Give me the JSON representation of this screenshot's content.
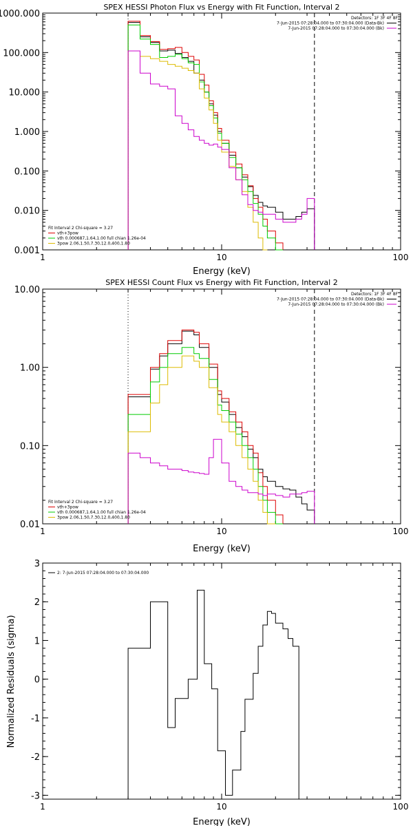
{
  "chart_data": [
    {
      "id": "photon",
      "type": "line",
      "step": true,
      "title": "SPEX HESSI Photon Flux vs Energy with Fit Function, Interval 2",
      "xlabel": "Energy (keV)",
      "ylabel": "",
      "xscale": "log",
      "yscale": "log",
      "xlim": [
        1,
        100
      ],
      "ylim": [
        0.001,
        1000
      ],
      "xticks": [
        {
          "v": 1,
          "label": "1"
        },
        {
          "v": 10,
          "label": "10"
        },
        {
          "v": 100,
          "label": "100"
        }
      ],
      "yticks": [
        {
          "v": 0.001,
          "label": "0.001"
        },
        {
          "v": 0.01,
          "label": "0.010"
        },
        {
          "v": 0.1,
          "label": "0.100"
        },
        {
          "v": 1,
          "label": "1.000"
        },
        {
          "v": 10,
          "label": "10.000"
        },
        {
          "v": 100,
          "label": "100.000"
        },
        {
          "v": 1000,
          "label": "1000.000"
        }
      ],
      "vlines": [
        {
          "x": 3.0,
          "style": "dotted"
        },
        {
          "x": 33.0,
          "style": "dashed"
        }
      ],
      "legend_top_right": [
        {
          "text": "Detectors: 1F 3F 4F 8F",
          "color": ""
        },
        {
          "text": "7-Jun-2015 07:28:04.000 to 07:30:04.000 (Data-Bk)",
          "color": "#000000"
        },
        {
          "text": "7-Jun-2015 07:28:04.000 to 07:30:04.000 (Bk)",
          "color": "#cc00cc"
        }
      ],
      "legend_bottom_left": [
        {
          "text": "Fit Interval 2   Chi-square = 3.27",
          "color": ""
        },
        {
          "text": "vth+3pow",
          "color": "#dd0000"
        },
        {
          "text": "vth 0.000687,1.64,1.00   full chian 1.26e-04",
          "color": "#00cc00"
        },
        {
          "text": "3pow 2.06,1.50,7.30,12.0,400,1.80",
          "color": "#ddbb00"
        }
      ],
      "edges": [
        3.0,
        3.5,
        4.0,
        4.5,
        5.0,
        5.5,
        6.0,
        6.5,
        7.0,
        7.5,
        8.0,
        8.5,
        9.0,
        9.5,
        10.0,
        11.0,
        12.0,
        13.0,
        14.0,
        15.0,
        16.0,
        17.0,
        18.0,
        20.0,
        22.0,
        24.0,
        26.0,
        28.0,
        30.0,
        33.0
      ],
      "series": [
        {
          "color": "#000000",
          "values": [
            580,
            250,
            180,
            110,
            115,
            95,
            75,
            60,
            30,
            20,
            10,
            5,
            2.6,
            1.0,
            0.5,
            0.25,
            0.12,
            0.07,
            0.04,
            0.024,
            0.016,
            0.013,
            0.012,
            0.009,
            0.006,
            0.006,
            0.007,
            0.009,
            0.011
          ]
        },
        {
          "color": "#dd0000",
          "values": [
            620,
            270,
            190,
            120,
            125,
            135,
            100,
            80,
            65,
            28,
            15,
            6,
            3.0,
            1.2,
            0.6,
            0.3,
            0.15,
            0.08,
            0.042,
            0.02,
            0.012,
            0.006,
            0.003,
            0.0015,
            null,
            null,
            null,
            null,
            null
          ]
        },
        {
          "color": "#00cc00",
          "values": [
            500,
            220,
            160,
            75,
            80,
            90,
            70,
            55,
            50,
            18,
            10,
            4.5,
            2.2,
            0.9,
            0.5,
            0.22,
            0.12,
            0.06,
            0.03,
            0.015,
            0.008,
            0.004,
            0.002,
            0.001,
            null,
            null,
            null,
            null,
            null
          ]
        },
        {
          "color": "#ddbb00",
          "values": [
            110,
            80,
            70,
            60,
            50,
            45,
            40,
            35,
            30,
            12,
            7,
            3.5,
            1.6,
            0.6,
            0.3,
            0.13,
            0.06,
            0.03,
            0.012,
            0.005,
            0.002,
            0.001,
            null,
            null,
            null,
            null,
            null,
            null,
            null
          ]
        },
        {
          "color": "#cc00cc",
          "values": [
            110,
            30,
            16,
            14,
            12,
            2.5,
            1.6,
            1.1,
            0.75,
            0.6,
            0.5,
            0.45,
            0.48,
            0.4,
            0.35,
            0.12,
            0.06,
            0.025,
            0.014,
            0.01,
            0.009,
            0.008,
            0.008,
            0.006,
            0.005,
            0.005,
            0.006,
            0.008,
            0.02
          ]
        }
      ]
    },
    {
      "id": "count",
      "type": "line",
      "step": true,
      "title": "SPEX HESSI Count Flux vs Energy with Fit Function, Interval 2",
      "xlabel": "Energy (keV)",
      "ylabel": "",
      "xscale": "log",
      "yscale": "log",
      "xlim": [
        1,
        100
      ],
      "ylim": [
        0.01,
        10
      ],
      "xticks": [
        {
          "v": 1,
          "label": "1"
        },
        {
          "v": 10,
          "label": "10"
        },
        {
          "v": 100,
          "label": "100"
        }
      ],
      "yticks": [
        {
          "v": 0.01,
          "label": "0.01"
        },
        {
          "v": 0.1,
          "label": "0.10"
        },
        {
          "v": 1,
          "label": "1.00"
        },
        {
          "v": 10,
          "label": "10.00"
        }
      ],
      "vlines": [
        {
          "x": 3.0,
          "style": "dotted"
        },
        {
          "x": 33.0,
          "style": "dashed"
        }
      ],
      "legend_top_right": [
        {
          "text": "Detectors: 1F 3F 4F 8F",
          "color": ""
        },
        {
          "text": "7-Jun-2015 07:28:04.000 to 07:30:04.000 (Data-Bk)",
          "color": "#000000"
        },
        {
          "text": "7-Jun-2015 07:28:04.000 to 07:30:04.000 (Bk)",
          "color": "#cc00cc"
        }
      ],
      "legend_bottom_left": [
        {
          "text": "Fit Interval 2   Chi-square = 3.27",
          "color": ""
        },
        {
          "text": "vth+3pow",
          "color": "#dd0000"
        },
        {
          "text": "vth 0.000687,1.64,1.00   full chian 1.26e-04",
          "color": "#00cc00"
        },
        {
          "text": "3pow 2.06,1.50,7.30,12.0,400,1.80",
          "color": "#ddbb00"
        }
      ],
      "edges": [
        3.0,
        3.5,
        4.0,
        4.5,
        5.0,
        5.5,
        6.0,
        6.5,
        7.0,
        7.5,
        8.0,
        8.5,
        9.0,
        9.5,
        10.0,
        11.0,
        12.0,
        13.0,
        14.0,
        15.0,
        16.0,
        17.0,
        18.0,
        20.0,
        22.0,
        24.0,
        26.0,
        28.0,
        30.0,
        33.0
      ],
      "series": [
        {
          "color": "#000000",
          "values": [
            0.42,
            0.42,
            0.95,
            1.4,
            2.0,
            2.0,
            2.9,
            2.9,
            2.6,
            1.8,
            1.8,
            1.0,
            1.0,
            0.45,
            0.36,
            0.25,
            0.17,
            0.13,
            0.09,
            0.07,
            0.05,
            0.04,
            0.035,
            0.03,
            0.028,
            0.027,
            0.022,
            0.018,
            0.015
          ]
        },
        {
          "color": "#dd0000",
          "values": [
            0.45,
            0.45,
            1.0,
            1.5,
            2.2,
            2.2,
            3.0,
            3.0,
            2.8,
            2.0,
            2.0,
            1.1,
            1.1,
            0.5,
            0.4,
            0.27,
            0.2,
            0.15,
            0.1,
            0.08,
            0.045,
            0.03,
            0.02,
            0.013,
            null,
            null,
            null,
            null,
            null
          ]
        },
        {
          "color": "#00cc00",
          "values": [
            0.25,
            0.25,
            0.65,
            1.0,
            1.5,
            1.5,
            1.8,
            1.8,
            1.5,
            1.3,
            1.3,
            0.7,
            0.7,
            0.33,
            0.28,
            0.2,
            0.14,
            0.1,
            0.07,
            0.05,
            0.03,
            0.02,
            0.014,
            0.01,
            null,
            null,
            null,
            null,
            null
          ]
        },
        {
          "color": "#ddbb00",
          "values": [
            0.15,
            0.15,
            0.35,
            0.6,
            1.0,
            1.0,
            1.4,
            1.4,
            1.2,
            1.0,
            1.0,
            0.55,
            0.55,
            0.25,
            0.2,
            0.15,
            0.1,
            0.07,
            0.05,
            0.035,
            0.02,
            0.014,
            0.01,
            null,
            null,
            null,
            null,
            null,
            null
          ]
        },
        {
          "color": "#cc00cc",
          "values": [
            0.08,
            0.07,
            0.06,
            0.055,
            0.05,
            0.05,
            0.048,
            0.046,
            0.045,
            0.044,
            0.043,
            0.07,
            0.12,
            0.12,
            0.06,
            0.035,
            0.03,
            0.027,
            0.025,
            0.025,
            0.024,
            0.023,
            0.024,
            0.023,
            0.022,
            0.024,
            0.024,
            0.025,
            0.026
          ]
        }
      ]
    },
    {
      "id": "residuals",
      "type": "line",
      "step": true,
      "title": "",
      "xlabel": "Energy (keV)",
      "ylabel": "Normalized Residuals (sigma)",
      "xscale": "log",
      "yscale": "linear",
      "xlim": [
        1,
        100
      ],
      "ylim": [
        -3.1,
        3
      ],
      "xticks": [
        {
          "v": 1,
          "label": "1"
        },
        {
          "v": 10,
          "label": "10"
        },
        {
          "v": 100,
          "label": "100"
        }
      ],
      "yticks": [
        {
          "v": -3,
          "label": "-3"
        },
        {
          "v": -2,
          "label": "-2"
        },
        {
          "v": -1,
          "label": "-1"
        },
        {
          "v": 0,
          "label": "0"
        },
        {
          "v": 1,
          "label": "1"
        },
        {
          "v": 2,
          "label": "2"
        },
        {
          "v": 3,
          "label": "3"
        }
      ],
      "vlines": [],
      "legend_top_left": [
        {
          "text": "2:  7-Jun-2015 07:28:04.000 to 07:30:04.000",
          "color": "#000000"
        }
      ],
      "edges": [
        3.0,
        4.0,
        5.0,
        5.5,
        6.5,
        7.3,
        8.0,
        8.8,
        9.5,
        10.5,
        11.5,
        12.8,
        13.5,
        15.0,
        16.0,
        17.0,
        18.0,
        19.0,
        20.0,
        22.0,
        23.5,
        25.0,
        27.0,
        29.5,
        33.0
      ],
      "series": [
        {
          "color": "#000000",
          "values": [
            0.8,
            2.0,
            -1.25,
            -0.5,
            0.0,
            2.3,
            0.4,
            -0.25,
            -1.85,
            -3.0,
            -2.35,
            -1.35,
            -0.52,
            0.15,
            0.85,
            1.4,
            1.75,
            1.7,
            1.45,
            1.3,
            1.05,
            0.85,
            null,
            null
          ]
        }
      ]
    }
  ]
}
